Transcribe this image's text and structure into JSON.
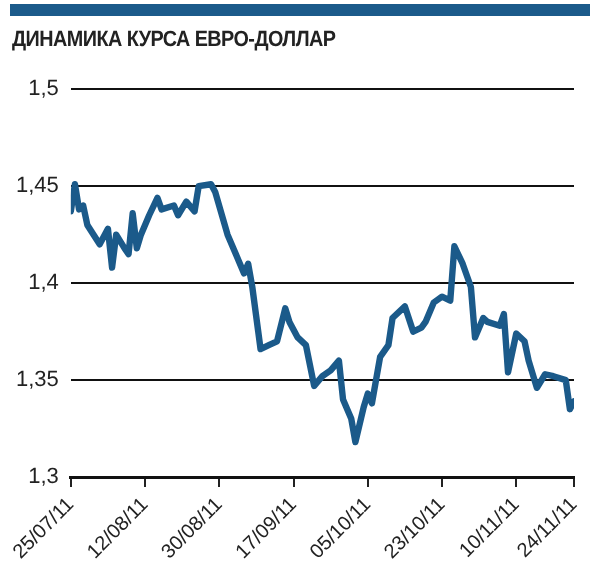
{
  "chart_data": {
    "type": "line",
    "title": "ДИНАМИКА КУРСА ЕВРО-ДОЛЛАР",
    "x": [
      "2011-07-25",
      "2011-07-26",
      "2011-07-27",
      "2011-07-28",
      "2011-07-29",
      "2011-08-01",
      "2011-08-03",
      "2011-08-04",
      "2011-08-05",
      "2011-08-07",
      "2011-08-08",
      "2011-08-09",
      "2011-08-10",
      "2011-08-11",
      "2011-08-13",
      "2011-08-15",
      "2011-08-16",
      "2011-08-19",
      "2011-08-20",
      "2011-08-22",
      "2011-08-24",
      "2011-08-25",
      "2011-08-28",
      "2011-08-29",
      "2011-09-01",
      "2011-09-03",
      "2011-09-05",
      "2011-09-06",
      "2011-09-07",
      "2011-09-09",
      "2011-09-11",
      "2011-09-13",
      "2011-09-15",
      "2011-09-16",
      "2011-09-18",
      "2011-09-20",
      "2011-09-22",
      "2011-09-24",
      "2011-09-26",
      "2011-09-28",
      "2011-09-29",
      "2011-10-01",
      "2011-10-02",
      "2011-10-04",
      "2011-10-05",
      "2011-10-06",
      "2011-10-08",
      "2011-10-10",
      "2011-10-11",
      "2011-10-14",
      "2011-10-16",
      "2011-10-18",
      "2011-10-19",
      "2011-10-21",
      "2011-10-23",
      "2011-10-25",
      "2011-10-26",
      "2011-10-28",
      "2011-10-30",
      "2011-10-31",
      "2011-11-02",
      "2011-11-03",
      "2011-11-06",
      "2011-11-07",
      "2011-11-08",
      "2011-11-10",
      "2011-11-12",
      "2011-11-13",
      "2011-11-15",
      "2011-11-17",
      "2011-11-19",
      "2011-11-22",
      "2011-11-23",
      "2011-11-24"
    ],
    "series": [
      {
        "color": "#1b5a8a",
        "values": [
          1.437,
          1.451,
          1.438,
          1.44,
          1.43,
          1.42,
          1.428,
          1.408,
          1.425,
          1.418,
          1.415,
          1.436,
          1.418,
          1.425,
          1.435,
          1.444,
          1.438,
          1.44,
          1.435,
          1.442,
          1.437,
          1.45,
          1.451,
          1.447,
          1.425,
          1.415,
          1.405,
          1.41,
          1.398,
          1.366,
          1.368,
          1.37,
          1.387,
          1.38,
          1.372,
          1.368,
          1.347,
          1.352,
          1.355,
          1.36,
          1.34,
          1.33,
          1.318,
          1.336,
          1.343,
          1.338,
          1.362,
          1.368,
          1.382,
          1.388,
          1.375,
          1.377,
          1.38,
          1.39,
          1.393,
          1.391,
          1.419,
          1.41,
          1.398,
          1.372,
          1.382,
          1.38,
          1.378,
          1.384,
          1.354,
          1.374,
          1.37,
          1.36,
          1.346,
          1.353,
          1.352,
          1.35,
          1.335,
          1.339
        ]
      }
    ],
    "xlim": [
      "2011-07-25",
      "2011-11-24"
    ],
    "xticks": [
      {
        "value": "2011-07-25",
        "label": "25/07/11"
      },
      {
        "value": "2011-08-12",
        "label": "12/08/11"
      },
      {
        "value": "2011-08-30",
        "label": "30/08/11"
      },
      {
        "value": "2011-09-17",
        "label": "17/09/11"
      },
      {
        "value": "2011-10-05",
        "label": "05/10/11"
      },
      {
        "value": "2011-10-23",
        "label": "23/10/11"
      },
      {
        "value": "2011-11-10",
        "label": "10/11/11"
      },
      {
        "value": "2011-11-24",
        "label": "24/11/11"
      }
    ],
    "ylim": [
      1.3,
      1.5
    ],
    "yticks": [
      {
        "value": 1.3,
        "label": "1,3"
      },
      {
        "value": 1.35,
        "label": "1,35"
      },
      {
        "value": 1.4,
        "label": "1,4"
      },
      {
        "value": 1.45,
        "label": "1,45"
      },
      {
        "value": 1.5,
        "label": "1,5"
      }
    ],
    "grid": "y",
    "legend": false,
    "marker": "none",
    "line_style": "solid"
  }
}
